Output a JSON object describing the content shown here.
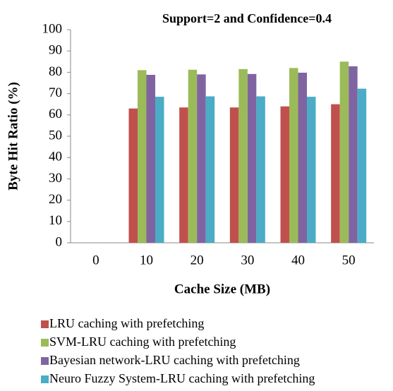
{
  "chart_data": {
    "type": "bar",
    "title": "Support=2 and Confidence=0.4",
    "x_label": "Cache Size (MB)",
    "y_label": "Byte Hit Ratio (%)",
    "categories": [
      "0",
      "10",
      "20",
      "30",
      "40",
      "50"
    ],
    "series": [
      {
        "name": "LRU caching with prefetching",
        "color": "#c0504d",
        "values": [
          null,
          63,
          63.5,
          63.5,
          64,
          65
        ]
      },
      {
        "name": "SVM-LRU caching with prefetching",
        "color": "#9bbb59",
        "values": [
          null,
          81,
          81.2,
          81.5,
          82,
          85
        ]
      },
      {
        "name": "Bayesian network-LRU caching with prefetching",
        "color": "#8064a2",
        "values": [
          null,
          78.8,
          79,
          79.2,
          79.8,
          82.8
        ]
      },
      {
        "name": "Neuro Fuzzy System-LRU caching with prefetching",
        "color": "#4bacc6",
        "values": [
          null,
          68.5,
          68.7,
          68.7,
          68.5,
          72.3
        ]
      }
    ],
    "ylim": [
      0,
      100
    ],
    "yticks": [
      0,
      10,
      20,
      30,
      40,
      50,
      60,
      70,
      80,
      90,
      100
    ],
    "grid": false,
    "legend": "bottom"
  }
}
